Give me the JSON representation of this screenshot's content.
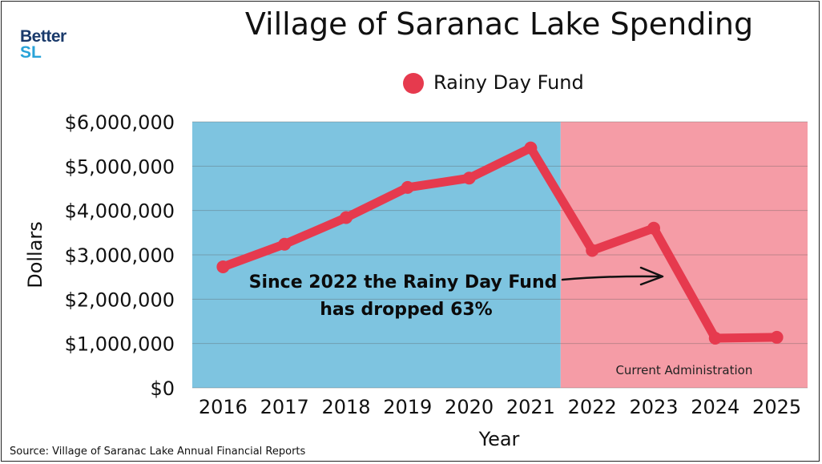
{
  "logo": {
    "line1": "Better",
    "line2": "SL"
  },
  "source": "Source: Village of Saranac Lake Annual Financial Reports",
  "chart_data": {
    "type": "line",
    "title": "Village of Saranac Lake Spending",
    "xlabel": "Year",
    "ylabel": "Dollars",
    "ylim": [
      0,
      6000000
    ],
    "yticks": [
      "$0",
      "$1,000,000",
      "$2,000,000",
      "$3,000,000",
      "$4,000,000",
      "$5,000,000",
      "$6,000,000"
    ],
    "categories": [
      "2016",
      "2017",
      "2018",
      "2019",
      "2020",
      "2021",
      "2022",
      "2023",
      "2024",
      "2025"
    ],
    "series": [
      {
        "name": "Rainy Day Fund",
        "color": "#e63a4e",
        "values": [
          2730000,
          3240000,
          3840000,
          4520000,
          4730000,
          5410000,
          3100000,
          3600000,
          1120000,
          1140000
        ]
      }
    ],
    "grid": true,
    "legend": "top-center",
    "regions": [
      {
        "from": "2016",
        "to": "2021",
        "color": "#7ec4e0"
      },
      {
        "from": "2022",
        "to": "2025",
        "color": "#f59ca6",
        "label": "Current Administration"
      }
    ],
    "annotation": {
      "lines": [
        "Since 2022 the Rainy Day Fund",
        "has dropped 63%"
      ]
    }
  }
}
